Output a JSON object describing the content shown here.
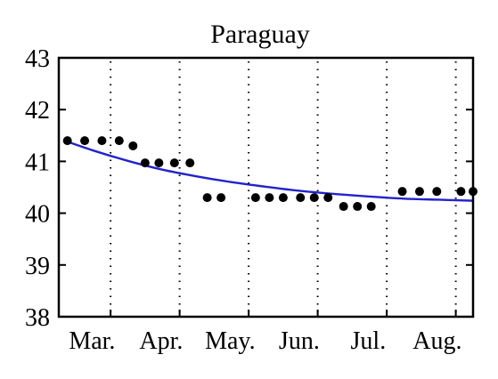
{
  "chart_data": {
    "type": "scatter",
    "title": "Paraguay",
    "xlabel": "",
    "ylabel": "",
    "ylim": [
      38,
      43
    ],
    "yticks": [
      38,
      39,
      40,
      41,
      42,
      43
    ],
    "xlim": [
      0,
      24
    ],
    "months": [
      "Mar.",
      "Apr.",
      "May.",
      "Jun.",
      "Jul.",
      "Aug."
    ],
    "month_positions": [
      1,
      5,
      9,
      13,
      17,
      21
    ],
    "grid_positions": [
      3,
      7,
      11,
      15,
      19,
      23
    ],
    "grid": "vertical-dotted",
    "series": [
      {
        "marker": "dot",
        "color": "#000000",
        "x": [
          0.5,
          1.5,
          2.5,
          3.5,
          4.3,
          5.0,
          5.8,
          6.7,
          7.6,
          8.6,
          9.4,
          11.4,
          12.2,
          13.0,
          14.0,
          14.8,
          15.6,
          16.5,
          17.3,
          18.1,
          19.9,
          20.9,
          21.9,
          23.3,
          24.0
        ],
        "y": [
          41.4,
          41.4,
          41.4,
          41.4,
          41.3,
          40.97,
          40.97,
          40.97,
          40.97,
          40.3,
          40.3,
          40.3,
          40.3,
          40.3,
          40.3,
          40.3,
          40.3,
          40.13,
          40.13,
          40.13,
          40.42,
          40.42,
          40.42,
          40.42,
          40.42
        ]
      },
      {
        "marker": "line",
        "color": "#2222cc",
        "x": [
          0.5,
          2,
          4,
          6,
          8,
          10,
          12,
          14,
          16,
          18,
          20,
          22,
          24
        ],
        "y": [
          41.38,
          41.21,
          41.01,
          40.84,
          40.71,
          40.6,
          40.51,
          40.43,
          40.37,
          40.32,
          40.28,
          40.26,
          40.24
        ]
      }
    ]
  }
}
